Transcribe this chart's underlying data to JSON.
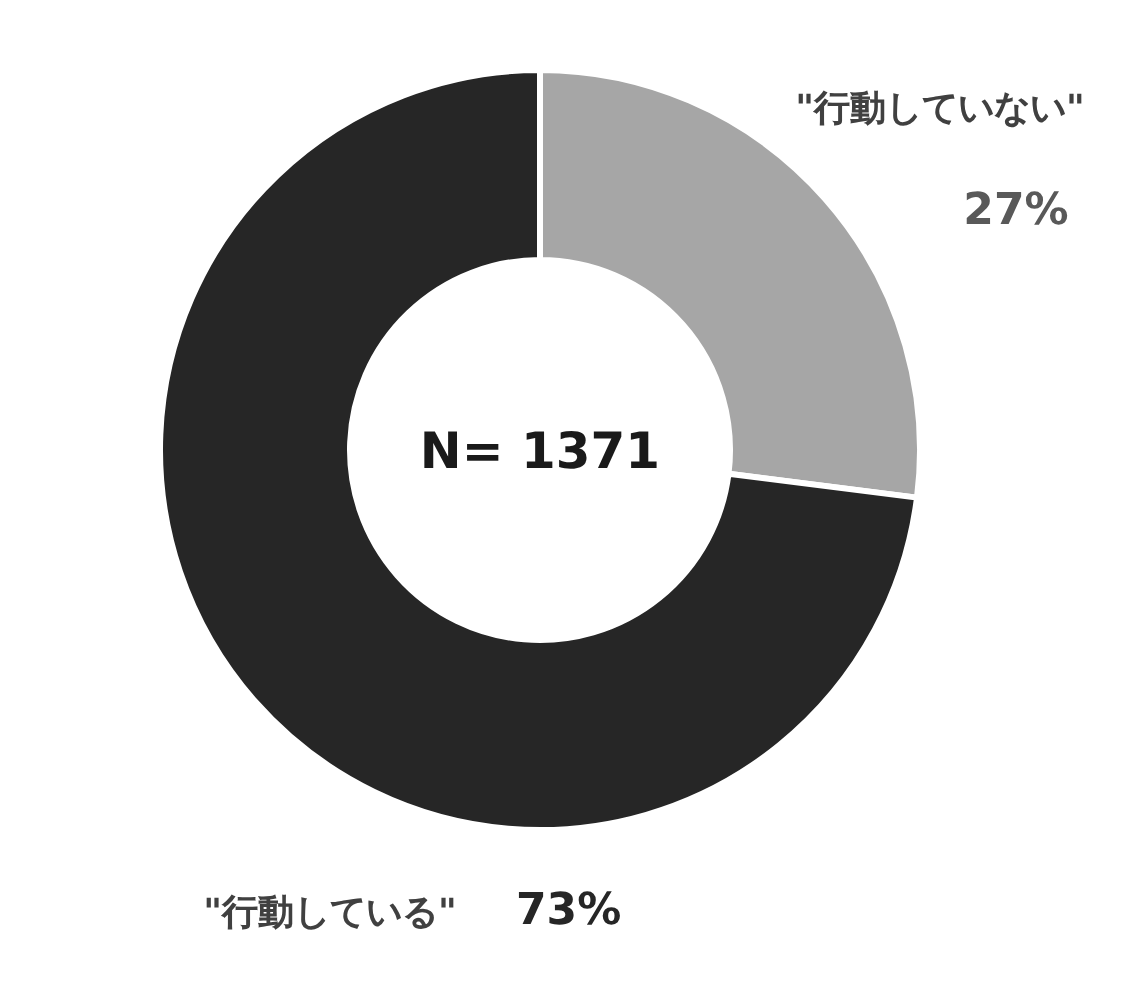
{
  "chart_data": {
    "type": "donut",
    "categories": [
      "\"行動していない\"",
      "\"行動している\""
    ],
    "values": [
      27,
      73
    ],
    "value_labels": [
      "27%",
      "73%"
    ],
    "colors": [
      "#a6a6a6",
      "#262626"
    ],
    "annotations": [
      "N= 1371"
    ]
  }
}
